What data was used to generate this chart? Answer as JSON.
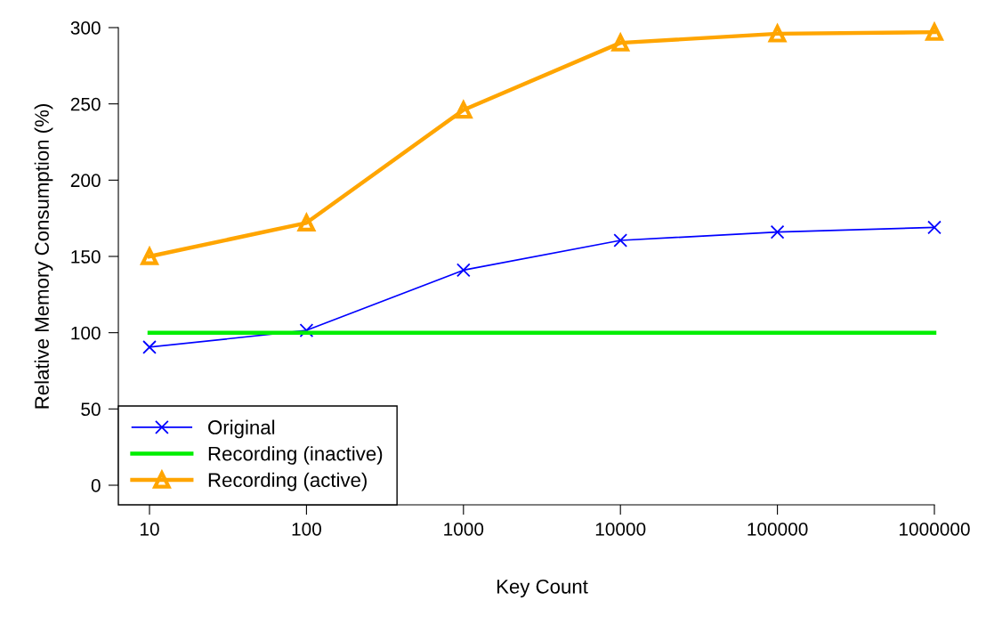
{
  "chart_data": {
    "type": "line",
    "xlabel": "Key Count",
    "ylabel": "Relative Memory Consumption (%)",
    "x": [
      10,
      100,
      1000,
      10000,
      100000,
      1000000
    ],
    "log": "x",
    "xlim": [
      10,
      1000000
    ],
    "xticks": [
      10,
      100,
      1000,
      10000,
      100000,
      1000000
    ],
    "ylim": [
      0,
      300
    ],
    "yticks": [
      0,
      50,
      100,
      150,
      200,
      250,
      300
    ],
    "grid": false,
    "legend": "bottom left",
    "series": [
      {
        "name": "Original",
        "color": "#0000ff",
        "marker": "cross",
        "values": [
          90.5,
          101.5,
          141,
          160.5,
          166,
          169
        ]
      },
      {
        "name": "Recording (inactive)",
        "color": "#00ee00",
        "marker": "none",
        "values": [
          100,
          100,
          100,
          100,
          100,
          100
        ]
      },
      {
        "name": "Recording (active)",
        "color": "#ffa500",
        "marker": "triangle",
        "values": [
          150,
          172,
          246,
          290,
          296,
          297
        ]
      }
    ]
  }
}
